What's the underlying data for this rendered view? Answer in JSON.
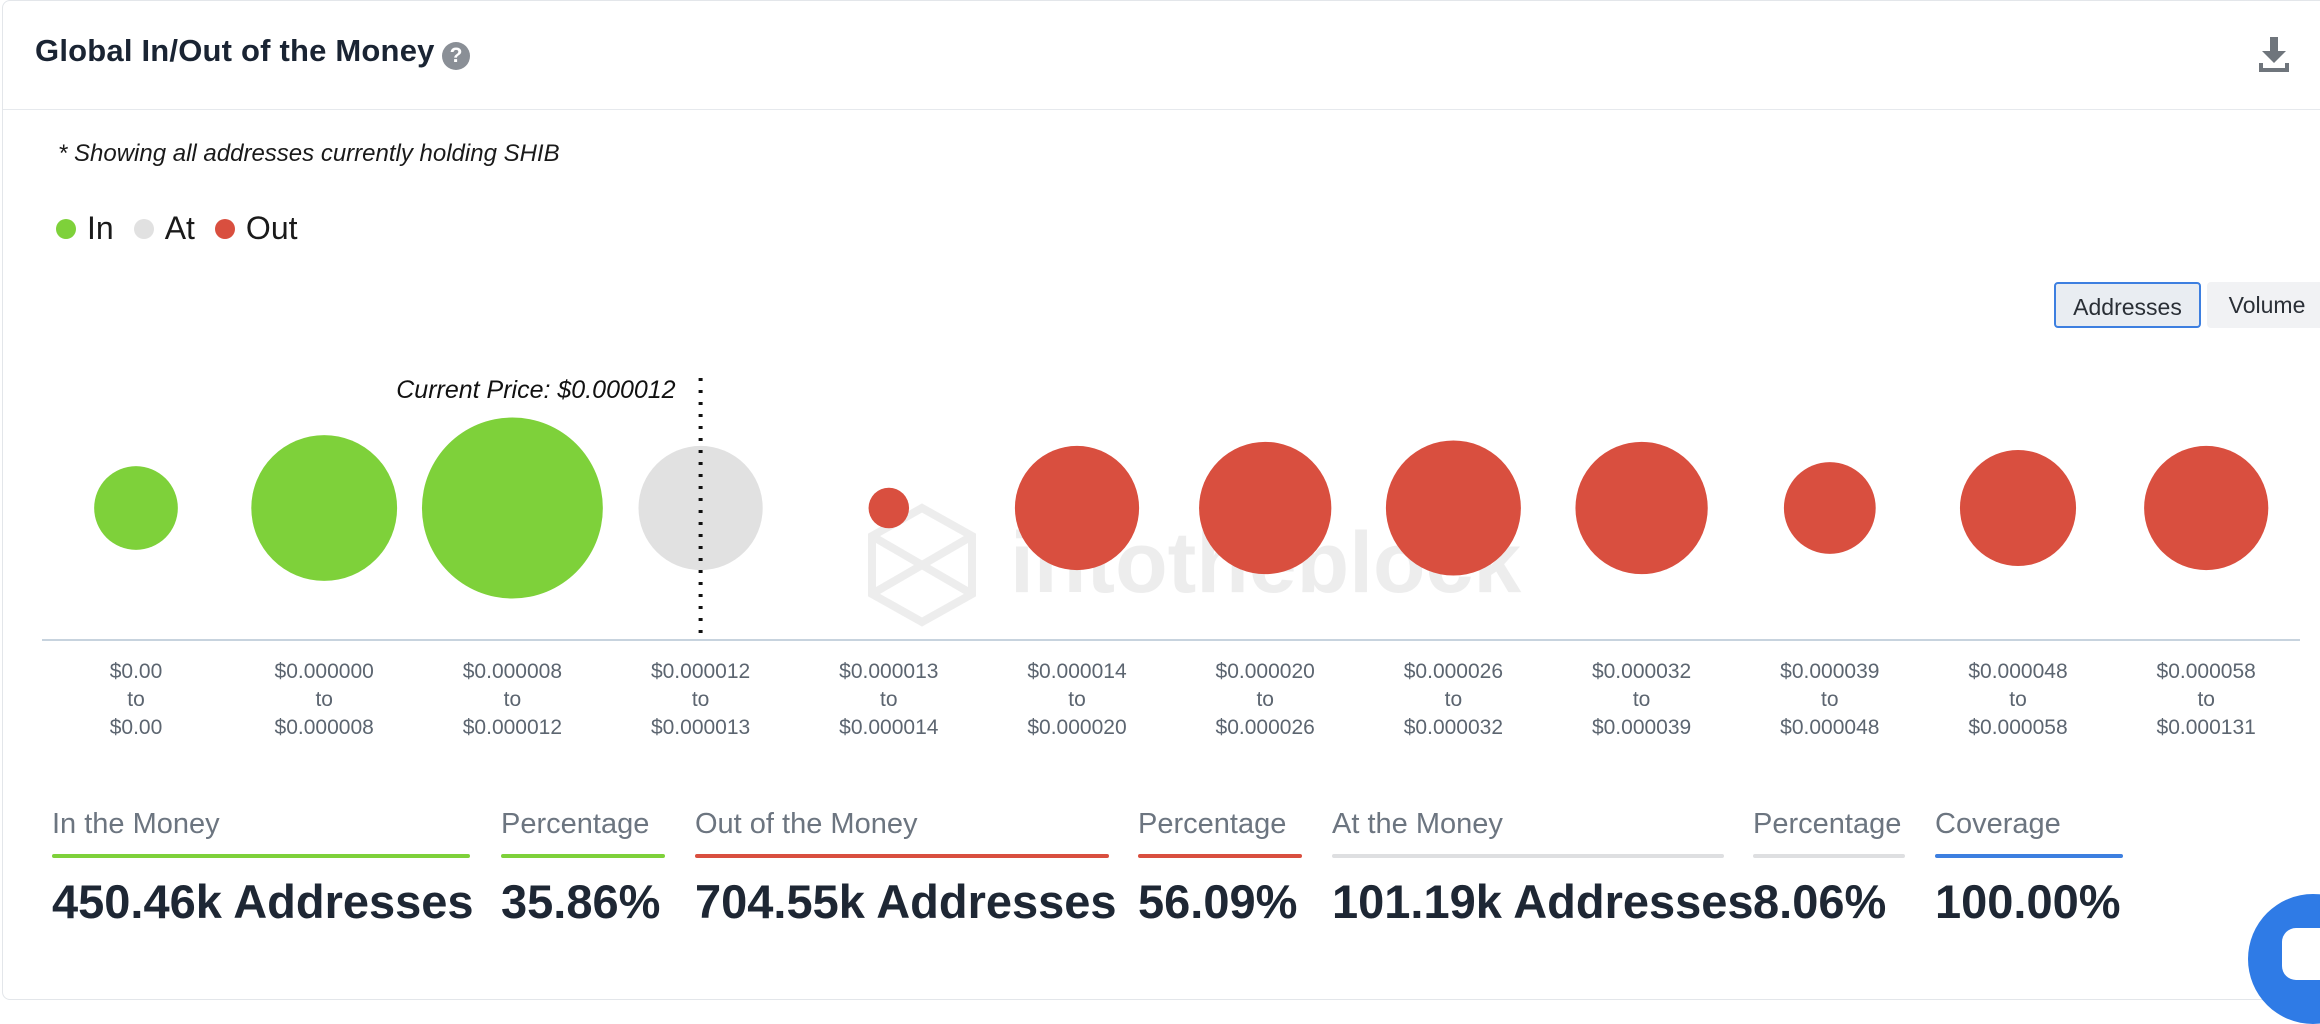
{
  "header": {
    "title": "Global In/Out of the Money",
    "help_icon": "?"
  },
  "note": "* Showing all addresses currently holding SHIB",
  "legend": [
    {
      "label": "In",
      "color": "#7ed13a"
    },
    {
      "label": "At",
      "color": "#e1e1e1"
    },
    {
      "label": "Out",
      "color": "#d94f3f"
    }
  ],
  "toggle": {
    "addresses_label": "Addresses",
    "volume_label": "Volume",
    "selected": "Addresses"
  },
  "watermark": "intotheblock",
  "chart_data": {
    "type": "bubble",
    "current_price_label": "Current Price: $0.000012",
    "current_price_bucket_index": 3,
    "categories": [
      {
        "from": "$0.00",
        "to": "$0.00",
        "status": "In",
        "relative_size": 0.31
      },
      {
        "from": "$0.000000",
        "to": "$0.000008",
        "status": "In",
        "relative_size": 0.54
      },
      {
        "from": "$0.000008",
        "to": "$0.000012",
        "status": "In",
        "relative_size": 0.67
      },
      {
        "from": "$0.000012",
        "to": "$0.000013",
        "status": "At",
        "relative_size": 0.46
      },
      {
        "from": "$0.000013",
        "to": "$0.000014",
        "status": "Out",
        "relative_size": 0.15
      },
      {
        "from": "$0.000014",
        "to": "$0.000020",
        "status": "Out",
        "relative_size": 0.46
      },
      {
        "from": "$0.000020",
        "to": "$0.000026",
        "status": "Out",
        "relative_size": 0.49
      },
      {
        "from": "$0.000026",
        "to": "$0.000032",
        "status": "Out",
        "relative_size": 0.5
      },
      {
        "from": "$0.000032",
        "to": "$0.000039",
        "status": "Out",
        "relative_size": 0.49
      },
      {
        "from": "$0.000039",
        "to": "$0.000048",
        "status": "Out",
        "relative_size": 0.34
      },
      {
        "from": "$0.000048",
        "to": "$0.000058",
        "status": "Out",
        "relative_size": 0.43
      },
      {
        "from": "$0.000058",
        "to": "$0.000131",
        "status": "Out",
        "relative_size": 0.46
      }
    ],
    "connector_label": "to"
  },
  "stats": [
    {
      "label": "In the Money",
      "value": "450.46k Addresses",
      "color": "#7ed13a"
    },
    {
      "label": "Percentage",
      "value": "35.86%",
      "color": "#7ed13a"
    },
    {
      "label": "Out of the Money",
      "value": "704.55k Addresses",
      "color": "#d94f3f"
    },
    {
      "label": "Percentage",
      "value": "56.09%",
      "color": "#d94f3f"
    },
    {
      "label": "At the Money",
      "value": "101.19k Addresses",
      "color": "#dedfe1"
    },
    {
      "label": "Percentage",
      "value": "8.06%",
      "color": "#dedfe1"
    },
    {
      "label": "Coverage",
      "value": "100.00%",
      "color": "#3d7fe0"
    }
  ]
}
